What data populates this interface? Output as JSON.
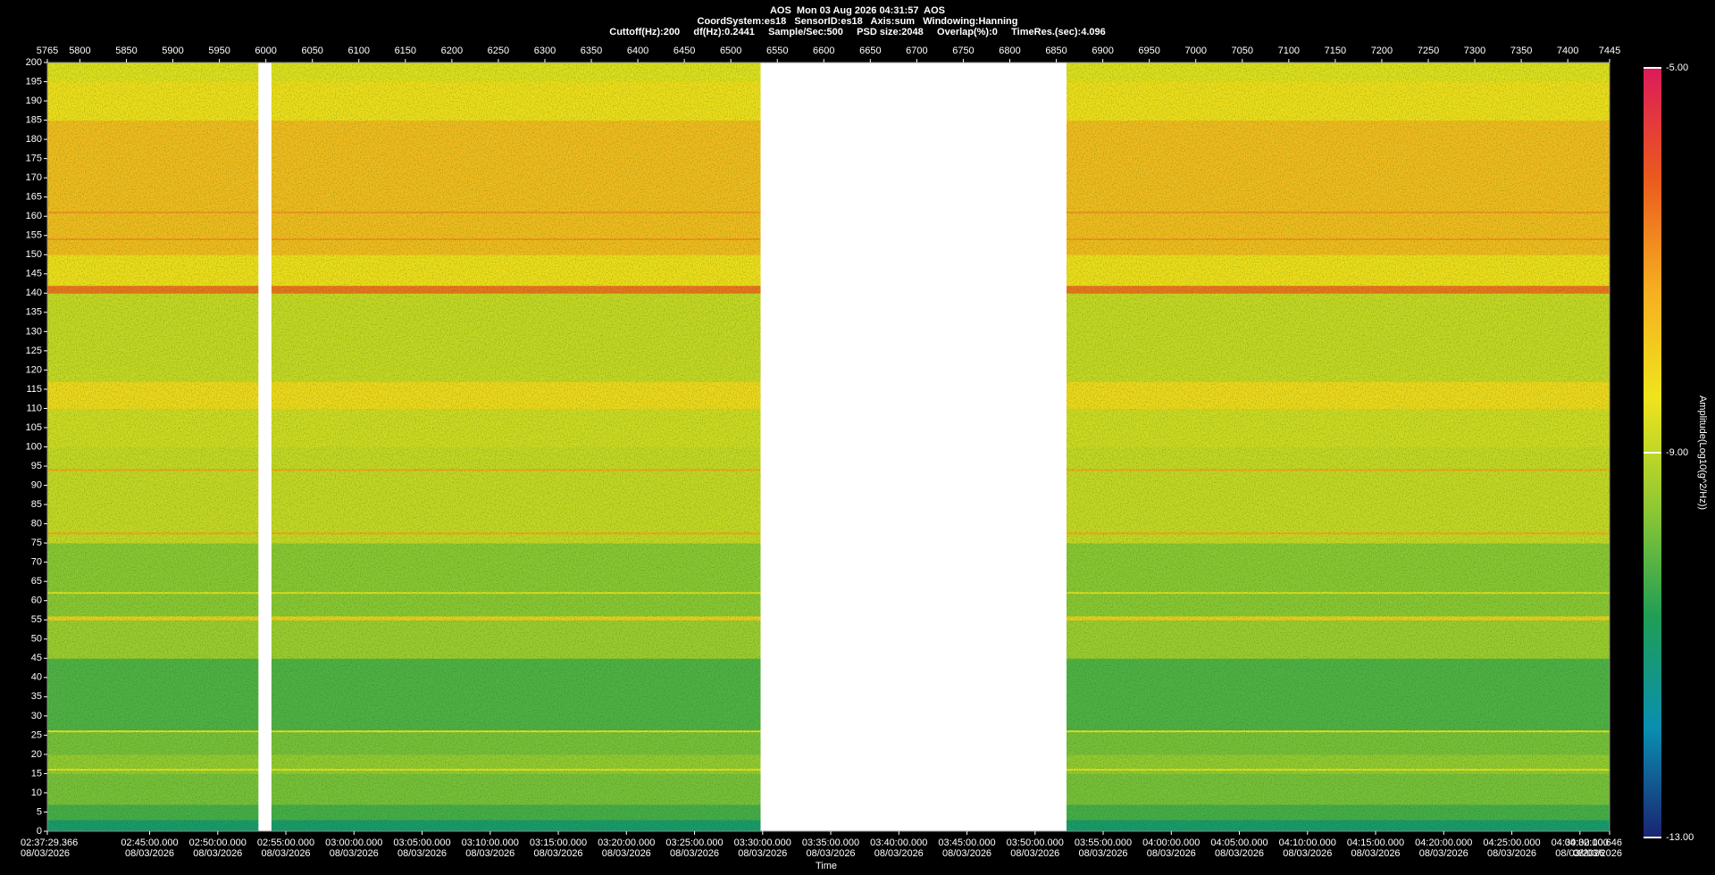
{
  "chart_data": {
    "type": "spectrogram",
    "title": "AOS  Mon 03 Aug 2026 04:31:57  AOS",
    "subtitles": [
      "CoordSystem:es18   SensorID:es18   Axis:sum   Windowing:Hanning",
      "Cuttoff(Hz):200     df(Hz):0.2441     Sample/Sec:500     PSD size:2048     Overlap(%):0     TimeRes.(sec):4.096"
    ],
    "xlabel": "Time",
    "colorbar_label": "Amplitude(Log10(g^2/Hz))",
    "xlim": [
      5765,
      7445
    ],
    "xticks": [
      5765,
      5800,
      5850,
      5900,
      5950,
      6000,
      6050,
      6100,
      6150,
      6200,
      6250,
      6300,
      6350,
      6400,
      6450,
      6500,
      6550,
      6600,
      6650,
      6700,
      6750,
      6800,
      6850,
      6900,
      6950,
      7000,
      7050,
      7100,
      7150,
      7200,
      7250,
      7300,
      7350,
      7400,
      7445
    ],
    "x2ticks": [
      {
        "value": 5765,
        "label": "02:37:29.366"
      },
      {
        "value": 5875.02,
        "label": "02:45:00.000"
      },
      {
        "value": 5948.26,
        "label": "02:50:00.000"
      },
      {
        "value": 6021.5,
        "label": "02:55:00.000"
      },
      {
        "value": 6094.75,
        "label": "03:00:00.000"
      },
      {
        "value": 6167.99,
        "label": "03:05:00.000"
      },
      {
        "value": 6241.23,
        "label": "03:10:00.000"
      },
      {
        "value": 6314.47,
        "label": "03:15:00.000"
      },
      {
        "value": 6387.71,
        "label": "03:20:00.000"
      },
      {
        "value": 6460.96,
        "label": "03:25:00.000"
      },
      {
        "value": 6534.2,
        "label": "03:30:00.000"
      },
      {
        "value": 6607.44,
        "label": "03:35:00.000"
      },
      {
        "value": 6680.68,
        "label": "03:40:00.000"
      },
      {
        "value": 6753.93,
        "label": "03:45:00.000"
      },
      {
        "value": 6827.17,
        "label": "03:50:00.000"
      },
      {
        "value": 6900.41,
        "label": "03:55:00.000"
      },
      {
        "value": 6973.65,
        "label": "04:00:00.000"
      },
      {
        "value": 7046.89,
        "label": "04:05:00.000"
      },
      {
        "value": 7120.14,
        "label": "04:10:00.000"
      },
      {
        "value": 7193.38,
        "label": "04:15:00.000"
      },
      {
        "value": 7266.62,
        "label": "04:20:00.000"
      },
      {
        "value": 7339.86,
        "label": "04:25:00.000"
      },
      {
        "value": 7413.1,
        "label": "04:30:00.000"
      },
      {
        "value": 7445,
        "label": "04:32:10.646"
      }
    ],
    "x2tick_dates": [
      "08/03/2026",
      "08/03/2026",
      "08/03/2026",
      "08/03/2026",
      "08/03/2026",
      "08/03/2026",
      "08/03/2026",
      "08/03/2026",
      "08/03/2026",
      "08/03/2026",
      "08/03/2026",
      "08/03/2026",
      "08/03/2026",
      "08/03/2026",
      "08/03/2026",
      "08/03/2026",
      "08/03/2026",
      "08/03/2026",
      "08/03/2026",
      "08/03/2026",
      "08/03/2026",
      "08/03/2026",
      "08/03/2026",
      "08/03/2026"
    ],
    "ylim": [
      0,
      200
    ],
    "yticks": [
      0,
      5,
      10,
      15,
      20,
      25,
      30,
      35,
      40,
      45,
      50,
      55,
      60,
      65,
      70,
      75,
      80,
      85,
      90,
      95,
      100,
      105,
      110,
      115,
      120,
      125,
      130,
      135,
      140,
      145,
      150,
      155,
      160,
      165,
      170,
      175,
      180,
      185,
      190,
      195,
      200
    ],
    "freq_bins": [
      0,
      3,
      7,
      15,
      20,
      26,
      45,
      55,
      56,
      75,
      100,
      110,
      117,
      140,
      142,
      150,
      185,
      195,
      200
    ],
    "amplitude": [
      -11,
      -10.3,
      -9.8,
      -9.5,
      -9.8,
      -10.2,
      -9.4,
      -8,
      -9.6,
      -8.9,
      -8.8,
      -8.2,
      -8.9,
      -6.5,
      -8.3,
      -7.6,
      -8.3,
      -8.6
    ],
    "tones": [
      {
        "freq": 161,
        "amplitude": -7
      },
      {
        "freq": 154,
        "amplitude": -7
      },
      {
        "freq": 94,
        "amplitude": -7.2
      },
      {
        "freq": 77.5,
        "amplitude": -7.2
      },
      {
        "freq": 62,
        "amplitude": -8.6
      },
      {
        "freq": 26,
        "amplitude": -8.5
      },
      {
        "freq": 16,
        "amplitude": -8.5
      }
    ],
    "gaps": [
      [
        5992,
        6006
      ],
      [
        6532,
        6861
      ]
    ],
    "clim": [
      -13,
      -5
    ],
    "cticks": [
      {
        "value": -13,
        "label": "-13.00"
      },
      {
        "value": -9,
        "label": "-9.00"
      },
      {
        "value": -5,
        "label": "-5.00"
      }
    ],
    "colormap": [
      "#1a2472",
      "#0a8fb0",
      "#1f9e55",
      "#8fc833",
      "#f0e41c",
      "#f6ad20",
      "#ea5a1e",
      "#dc1a5a"
    ]
  }
}
